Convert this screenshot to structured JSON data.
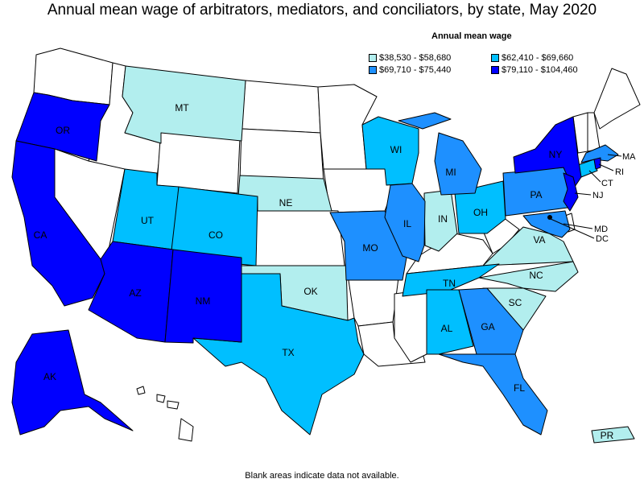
{
  "title": "Annual mean wage of arbitrators, mediators, and conciliators, by state, May 2020",
  "legend": {
    "title": "Annual mean wage",
    "items": [
      {
        "label": "$38,530 - $58,680",
        "color": "#b2eeee"
      },
      {
        "label": "$62,410 - $69,660",
        "color": "#00bfff"
      },
      {
        "label": "$69,710 - $75,440",
        "color": "#1e90ff"
      },
      {
        "label": "$79,110 - $104,460",
        "color": "#0000ff"
      }
    ]
  },
  "footnote": "Blank areas indicate data not available.",
  "states": {
    "OR": {
      "label": "OR",
      "tier": 3
    },
    "CA": {
      "label": "CA",
      "tier": 3
    },
    "AZ": {
      "label": "AZ",
      "tier": 3
    },
    "NM": {
      "label": "NM",
      "tier": 3
    },
    "AK": {
      "label": "AK",
      "tier": 3
    },
    "NY": {
      "label": "NY",
      "tier": 3
    },
    "NJ": {
      "label": "NJ",
      "tier": 3
    },
    "RI": {
      "label": "RI",
      "tier": 3
    },
    "MT": {
      "label": "MT",
      "tier": 0
    },
    "NE": {
      "label": "NE",
      "tier": 0
    },
    "OK": {
      "label": "OK",
      "tier": 0
    },
    "IN": {
      "label": "IN",
      "tier": 0
    },
    "VA": {
      "label": "VA",
      "tier": 0
    },
    "NC": {
      "label": "NC",
      "tier": 0
    },
    "SC": {
      "label": "SC",
      "tier": 0
    },
    "PR": {
      "label": "PR",
      "tier": 0
    },
    "UT": {
      "label": "UT",
      "tier": 1
    },
    "CO": {
      "label": "CO",
      "tier": 1
    },
    "TX": {
      "label": "TX",
      "tier": 1
    },
    "WI": {
      "label": "WI",
      "tier": 1
    },
    "OH": {
      "label": "OH",
      "tier": 1
    },
    "TN": {
      "label": "TN",
      "tier": 1
    },
    "AL": {
      "label": "AL",
      "tier": 1
    },
    "CT": {
      "label": "CT",
      "tier": 1
    },
    "MO": {
      "label": "MO",
      "tier": 2
    },
    "IL": {
      "label": "IL",
      "tier": 2
    },
    "MI": {
      "label": "MI",
      "tier": 2
    },
    "PA": {
      "label": "PA",
      "tier": 2
    },
    "GA": {
      "label": "GA",
      "tier": 2
    },
    "FL": {
      "label": "FL",
      "tier": 2
    },
    "MA": {
      "label": "MA",
      "tier": 2
    },
    "MD": {
      "label": "MD",
      "tier": 2
    },
    "DC": {
      "label": "DC",
      "tier": 3
    }
  }
}
